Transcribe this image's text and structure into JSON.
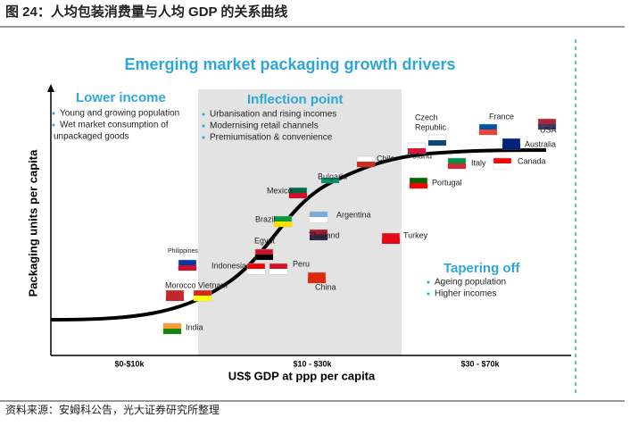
{
  "header": {
    "title": "图 24：人均包装消费量与人均 GDP 的关系曲线"
  },
  "chart": {
    "title": "Emerging market packaging growth drivers",
    "y_axis_label": "Packaging units per capita",
    "x_axis_label": "US$ GDP at ppp per capita",
    "x_regions": [
      "$0-$10k",
      "$10 - $30k",
      "$30 - $70k"
    ],
    "sections": [
      {
        "title": "Lower income",
        "bullets": [
          "Young and growing population",
          "Wet market consumption of",
          "unpackaged goods"
        ]
      },
      {
        "title": "Inflection point",
        "bullets": [
          "Urbanisation and rising incomes",
          "Modernising retail channels",
          "Premiumisation & convenience"
        ]
      },
      {
        "title": "Tapering off",
        "bullets": [
          "Ageing population",
          "Higher incomes"
        ]
      }
    ],
    "countries": [
      "India",
      "Morocco",
      "Vietnam",
      "Philippines",
      "Indonesia",
      "Egypt",
      "Peru",
      "China",
      "Brazil",
      "Mexico",
      "Bulgaria",
      "Argentina",
      "Thailand",
      "Chile",
      "Turkey",
      "Poland",
      "Czech",
      "Republic",
      "France",
      "USA",
      "Australia",
      "Italy",
      "Canada",
      "Portugal"
    ]
  },
  "footer": {
    "source": "资料来源：安姆科公告，光大证券研究所整理"
  }
}
